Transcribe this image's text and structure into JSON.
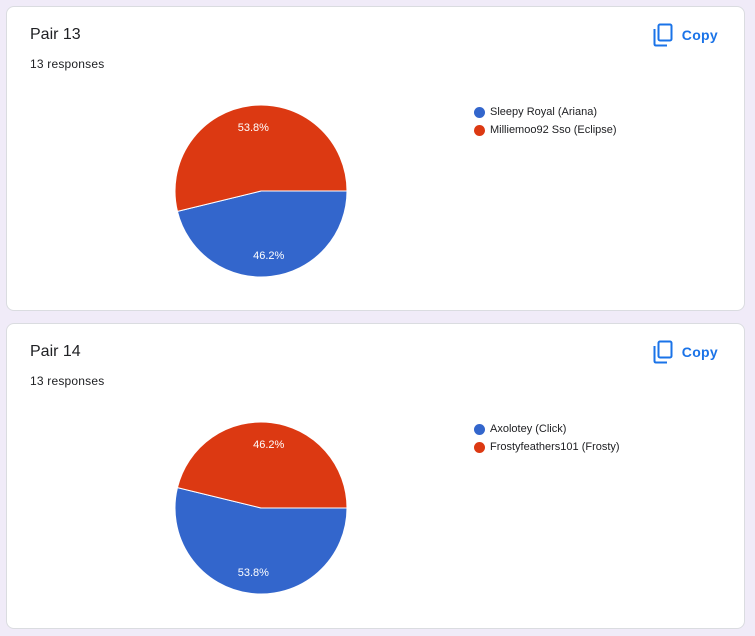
{
  "copy_label": "Copy",
  "chart_data": [
    {
      "type": "pie",
      "title": "Pair 13",
      "subtitle": "13 responses",
      "legend_position": "right",
      "series": [
        {
          "name": "Sleepy Royal (Ariana)",
          "value": 46.2,
          "label": "46.2%",
          "color": "#3366cc"
        },
        {
          "name": "Milliemoo92 Sso (Eclipse)",
          "value": 53.8,
          "label": "53.8%",
          "color": "#dc3912"
        }
      ]
    },
    {
      "type": "pie",
      "title": "Pair 14",
      "subtitle": "13 responses",
      "legend_position": "right",
      "series": [
        {
          "name": "Axolotey (Click)",
          "value": 53.8,
          "label": "53.8%",
          "color": "#3366cc"
        },
        {
          "name": "Frostyfeathers101 (Frosty)",
          "value": 46.2,
          "label": "46.2%",
          "color": "#dc3912"
        }
      ]
    }
  ]
}
